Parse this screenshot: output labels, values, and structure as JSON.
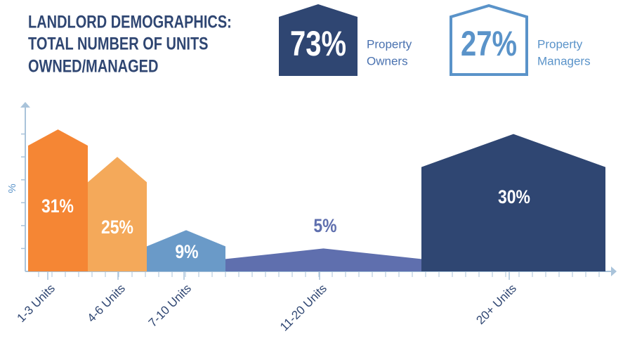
{
  "chart_data": {
    "type": "house-bar",
    "title_lines": [
      "LANDLORD DEMOGRAPHICS:",
      "TOTAL NUMBER OF UNITS",
      "OWNED/MANAGED"
    ],
    "badges": [
      {
        "value": 73,
        "value_label": "73%",
        "label_lines": [
          "Property",
          "Owners"
        ],
        "style": "filled",
        "color": "#2f4672"
      },
      {
        "value": 27,
        "value_label": "27%",
        "label_lines": [
          "Property",
          "Managers"
        ],
        "style": "outline",
        "color": "#5a93c9"
      }
    ],
    "y_label": "%",
    "categories": [
      "1-3 Units",
      "4-6 Units",
      "7-10 Units",
      "11-20 Units",
      "20+ Units"
    ],
    "values": [
      31,
      25,
      9,
      5,
      30
    ],
    "value_labels": [
      "31%",
      "25%",
      "9%",
      "5%",
      "30%"
    ],
    "colors": [
      "#f58634",
      "#f4a95a",
      "#6a9ac8",
      "#5f6fae",
      "#2f4672"
    ],
    "ylim": [
      0,
      37
    ],
    "yticks": [
      0,
      5,
      10,
      15,
      20,
      25,
      30
    ]
  }
}
